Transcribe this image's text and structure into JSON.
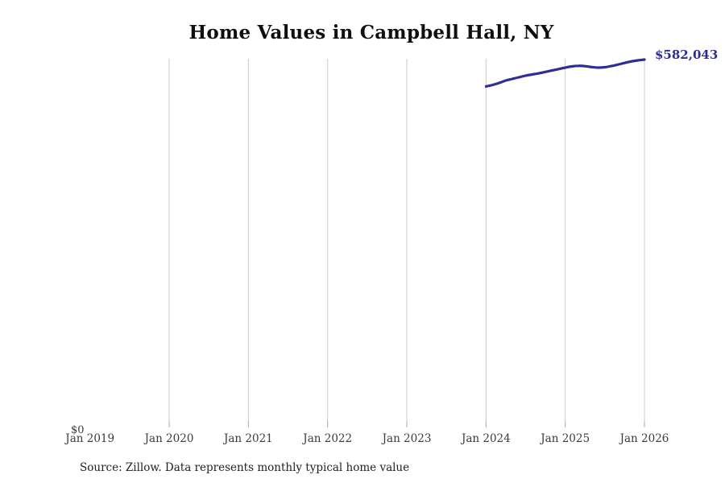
{
  "title": "Home Values in Campbell Hall, NY",
  "end_label": "$582,043",
  "y_zero_label": "$0",
  "source_note": "Source: Zillow. Data represents monthly typical home value",
  "colors": {
    "line": "#302d96",
    "end_label": "#2b2d8c",
    "gridline": "#cbcbcb",
    "tick": "#a8a8a8",
    "title_text": "#0f0f0f",
    "axis_text": "#3a3a3a",
    "source_text": "#1f1f1f",
    "background": "#ffffff"
  },
  "chart_data": {
    "type": "line",
    "title": "Home Values in Campbell Hall, NY",
    "xlabel": "",
    "ylabel": "",
    "x_tick_labels": [
      "Jan 2019",
      "Jan 2020",
      "Jan 2021",
      "Jan 2022",
      "Jan 2023",
      "Jan 2024",
      "Jan 2025",
      "Jan 2026"
    ],
    "x_tick_years": [
      2019,
      2020,
      2021,
      2022,
      2023,
      2024,
      2025,
      2026
    ],
    "gridline_years": [
      2020,
      2021,
      2022,
      2023,
      2024,
      2025,
      2026
    ],
    "grid": "vertical-only",
    "legend": "none",
    "ylim": [
      0,
      583000
    ],
    "y_ticks_visible": [
      "$0"
    ],
    "end_annotation": "$582,043",
    "series": [
      {
        "name": "Monthly typical home value",
        "points": [
          {
            "date": "2024-01",
            "value": 539400
          },
          {
            "date": "2024-02",
            "value": 541800
          },
          {
            "date": "2024-03",
            "value": 545000
          },
          {
            "date": "2024-04",
            "value": 548800
          },
          {
            "date": "2024-05",
            "value": 551400
          },
          {
            "date": "2024-06",
            "value": 554000
          },
          {
            "date": "2024-07",
            "value": 556500
          },
          {
            "date": "2024-08",
            "value": 558400
          },
          {
            "date": "2024-09",
            "value": 560300
          },
          {
            "date": "2024-10",
            "value": 562500
          },
          {
            "date": "2024-11",
            "value": 564800
          },
          {
            "date": "2024-12",
            "value": 567000
          },
          {
            "date": "2025-01",
            "value": 569300
          },
          {
            "date": "2025-02",
            "value": 571200
          },
          {
            "date": "2025-03",
            "value": 572100
          },
          {
            "date": "2025-04",
            "value": 571600
          },
          {
            "date": "2025-05",
            "value": 570200
          },
          {
            "date": "2025-06",
            "value": 569300
          },
          {
            "date": "2025-07",
            "value": 569900
          },
          {
            "date": "2025-08",
            "value": 571800
          },
          {
            "date": "2025-09",
            "value": 574100
          },
          {
            "date": "2025-10",
            "value": 576700
          },
          {
            "date": "2025-11",
            "value": 579100
          },
          {
            "date": "2025-12",
            "value": 580800
          },
          {
            "date": "2026-01",
            "value": 582043
          }
        ]
      }
    ]
  }
}
